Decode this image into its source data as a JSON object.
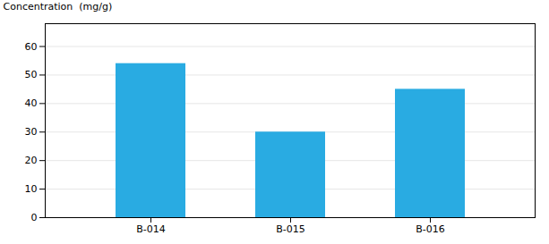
{
  "chart_data": {
    "type": "bar",
    "categories": [
      "B-014",
      "B-015",
      "B-016"
    ],
    "values": [
      54,
      30,
      45
    ],
    "color": "#29ABE2",
    "ylabel": "Concentration  (mg/g)",
    "ylim": [
      0,
      68
    ],
    "yticks": [
      0,
      10,
      20,
      30,
      40,
      50,
      60
    ],
    "grid": true
  }
}
